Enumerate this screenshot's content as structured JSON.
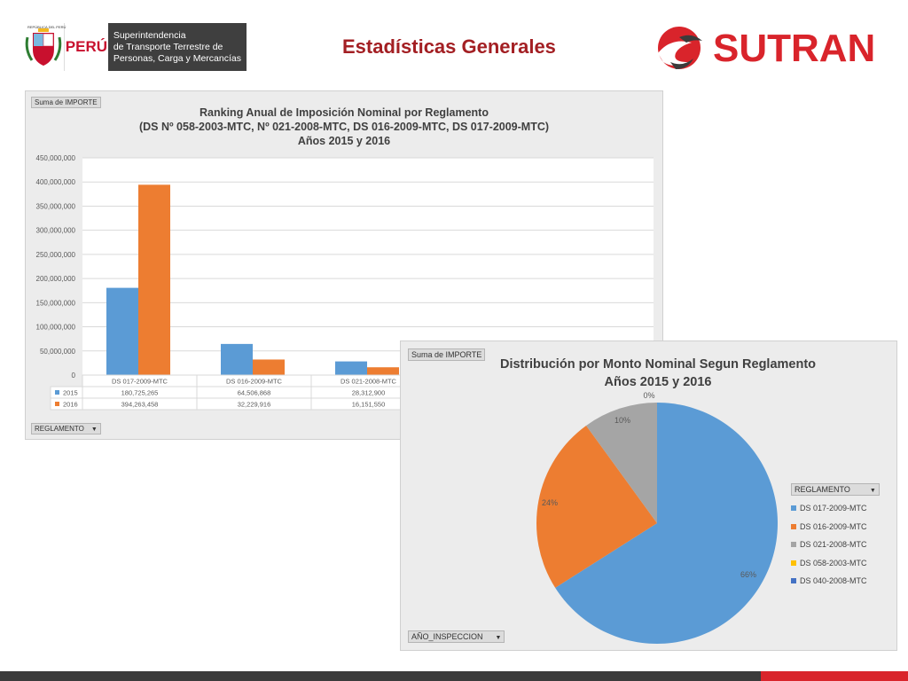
{
  "header": {
    "gov_seal_text": "REPÚBLICA DEL PERÚ",
    "gov_country": "PERÚ",
    "gov_lines": [
      "Superintendencia",
      "de Transporte Terrestre de",
      "Personas, Carga y Mercancías"
    ],
    "page_title": "Estadísticas Generales",
    "brand": "SUTRAN"
  },
  "bar_panel": {
    "field_value": "Suma de IMPORTE",
    "field_filter": "REGLAMENTO"
  },
  "pie_panel": {
    "field_value": "Suma de IMPORTE",
    "field_filter": "AÑO_INSPECCION",
    "legend_field": "REGLAMENTO"
  },
  "chart_data": [
    {
      "type": "bar",
      "title_lines": [
        "Ranking Anual de Imposición Nominal por Reglamento",
        "(DS Nº 058-2003-MTC, Nº 021-2008-MTC, DS 016-2009-MTC, DS 017-2009-MTC)",
        "Años 2015 y 2016"
      ],
      "categories": [
        "DS 017-2009-MTC",
        "DS 016-2009-MTC",
        "DS 021-2008-MTC"
      ],
      "series": [
        {
          "name": "2015",
          "color": "#5b9bd5",
          "values": [
            180725265,
            64506868,
            28312900
          ],
          "labels": [
            "180,725,265",
            "64,506,868",
            "28,312,900"
          ]
        },
        {
          "name": "2016",
          "color": "#ed7d31",
          "values": [
            394263458,
            32229916,
            16151550
          ],
          "labels": [
            "394,263,458",
            "32,229,916",
            "16,151,550"
          ]
        }
      ],
      "ylim": [
        0,
        450000000
      ],
      "yticks": [
        "0",
        "50,000,000",
        "100,000,000",
        "150,000,000",
        "200,000,000",
        "250,000,000",
        "300,000,000",
        "350,000,000",
        "400,000,000",
        "450,000,000"
      ],
      "grid": true,
      "legend": "data-table"
    },
    {
      "type": "pie",
      "title_lines": [
        "Distribución  por Monto Nominal Segun Reglamento",
        "Años 2015 y 2016"
      ],
      "slices": [
        {
          "name": "DS 017-2009-MTC",
          "value": 66,
          "label": "66%",
          "color": "#5b9bd5"
        },
        {
          "name": "DS 016-2009-MTC",
          "value": 24,
          "label": "24%",
          "color": "#ed7d31"
        },
        {
          "name": "DS 021-2008-MTC",
          "value": 10,
          "label": "10%",
          "color": "#a5a5a5"
        },
        {
          "name": "DS 058-2003-MTC",
          "value": 0,
          "label": "0%",
          "color": "#ffc000"
        },
        {
          "name": "DS 040-2008-MTC",
          "value": 0,
          "label": "",
          "color": "#4472c4"
        }
      ],
      "legend": "right"
    }
  ]
}
